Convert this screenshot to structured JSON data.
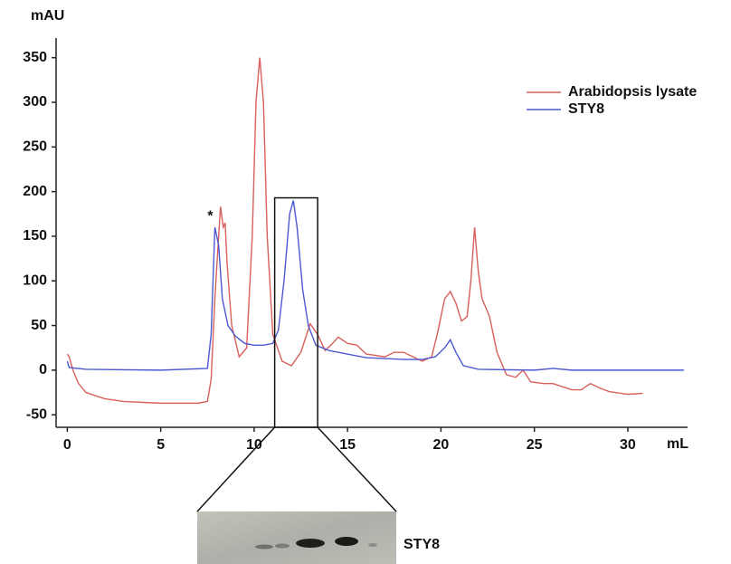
{
  "chart_data": {
    "type": "line",
    "y_label": "mAU",
    "x_label": "mL",
    "xlim": [
      -0.6,
      33.2
    ],
    "ylim": [
      -64,
      372
    ],
    "xticks": [
      0,
      5,
      10,
      15,
      20,
      25,
      30
    ],
    "yticks": [
      -50,
      0,
      50,
      100,
      150,
      200,
      250,
      300,
      350
    ],
    "legend": "upper right",
    "series": [
      {
        "name": "Arabidopsis lysate",
        "color": "#d8605c",
        "x": [
          0,
          0.1,
          0.3,
          0.6,
          1,
          2,
          3,
          5,
          7,
          7.5,
          7.7,
          7.9,
          8.1,
          8.2,
          8.35,
          8.45,
          8.55,
          8.8,
          9.2,
          9.6,
          9.9,
          10.1,
          10.3,
          10.5,
          10.7,
          11,
          11.5,
          12,
          12.5,
          13,
          13.4,
          13.8,
          14.2,
          14.5,
          15,
          15.5,
          16,
          17,
          17.5,
          18,
          18.5,
          19,
          19.5,
          19.8,
          20.2,
          20.5,
          20.8,
          21.1,
          21.4,
          21.6,
          21.8,
          22,
          22.2,
          22.6,
          23,
          23.5,
          24,
          24.4,
          24.8,
          25.5,
          26,
          27,
          27.5,
          28,
          28.5,
          29,
          30,
          30.8
        ],
        "values": [
          18,
          15,
          0,
          -15,
          -25,
          -32,
          -35,
          -37,
          -37,
          -35,
          -10,
          80,
          150,
          183,
          160,
          165,
          120,
          50,
          15,
          25,
          150,
          300,
          350,
          300,
          150,
          40,
          10,
          5,
          20,
          52,
          40,
          22,
          30,
          37,
          30,
          28,
          18,
          15,
          20,
          20,
          15,
          10,
          15,
          40,
          80,
          88,
          75,
          55,
          60,
          100,
          160,
          110,
          80,
          60,
          20,
          -5,
          -8,
          0,
          -13,
          -15,
          -15,
          -22,
          -22,
          -15,
          -20,
          -24,
          -27,
          -26
        ]
      },
      {
        "name": "STY8",
        "color": "#4b58d2",
        "x": [
          0,
          0.1,
          1,
          5,
          7.5,
          7.7,
          7.9,
          8.1,
          8.3,
          8.6,
          9,
          9.5,
          10,
          10.5,
          11,
          11.3,
          11.6,
          11.9,
          12.1,
          12.3,
          12.6,
          12.9,
          13.3,
          14,
          15,
          16,
          18,
          19,
          19.7,
          20.2,
          20.5,
          20.8,
          21.2,
          22,
          25,
          26,
          27,
          33
        ],
        "values": [
          10,
          3,
          1,
          0,
          2,
          40,
          160,
          140,
          80,
          50,
          38,
          30,
          28,
          28,
          30,
          45,
          100,
          175,
          190,
          160,
          90,
          50,
          28,
          22,
          18,
          14,
          12,
          12,
          15,
          25,
          34,
          20,
          5,
          1,
          0,
          2,
          0,
          0
        ]
      }
    ],
    "annotations": [
      {
        "text": "*",
        "x": 7.8,
        "y": 172
      }
    ],
    "highlight": {
      "xlim": [
        11.1,
        13.4
      ],
      "top": 193
    },
    "blot_label": "STY8"
  }
}
